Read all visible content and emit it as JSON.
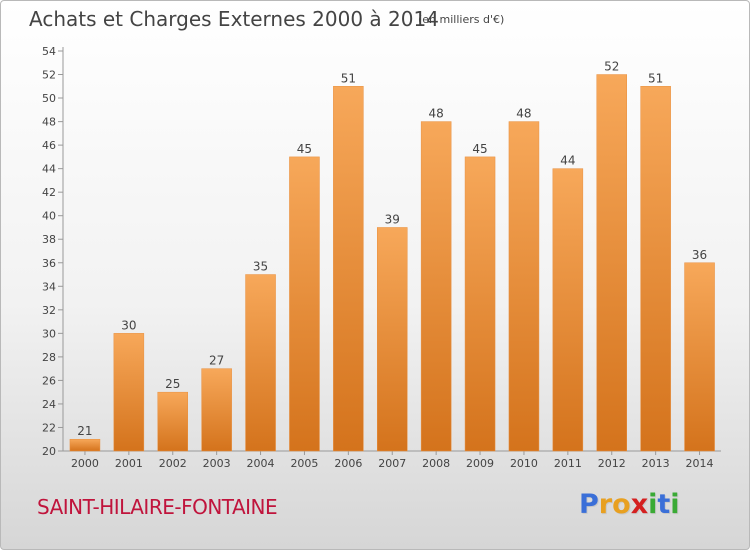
{
  "title": "Achats et Charges Externes 2000 à 2014",
  "subtitle": "(en milliers d'€)",
  "place_name": "SAINT-HILAIRE-FONTAINE",
  "logo": {
    "text": "Proxiti",
    "letter_colors": [
      "#3a6fd8",
      "#e8a020",
      "#e8a020",
      "#d42020",
      "#3aaa35",
      "#3a6fd8",
      "#3aaa35"
    ]
  },
  "colors": {
    "bar_top": "#f7a85a",
    "bar_bottom": "#d4731c",
    "bar_edge": "#e89040",
    "title": "#444444",
    "place": "#c0143c"
  },
  "chart_data": {
    "type": "bar",
    "title": "Achats et Charges Externes 2000 à 2014",
    "subtitle": "(en milliers d'€)",
    "categories": [
      "2000",
      "2001",
      "2002",
      "2003",
      "2004",
      "2005",
      "2006",
      "2007",
      "2008",
      "2009",
      "2010",
      "2011",
      "2012",
      "2013",
      "2014"
    ],
    "values": [
      21,
      30,
      25,
      27,
      35,
      45,
      51,
      39,
      48,
      45,
      48,
      44,
      52,
      51,
      36
    ],
    "ylim": [
      20,
      54
    ],
    "yticks": [
      20,
      22,
      24,
      26,
      28,
      30,
      32,
      34,
      36,
      38,
      40,
      42,
      44,
      46,
      48,
      50,
      52,
      54
    ],
    "grid": false,
    "data_labels": true
  }
}
